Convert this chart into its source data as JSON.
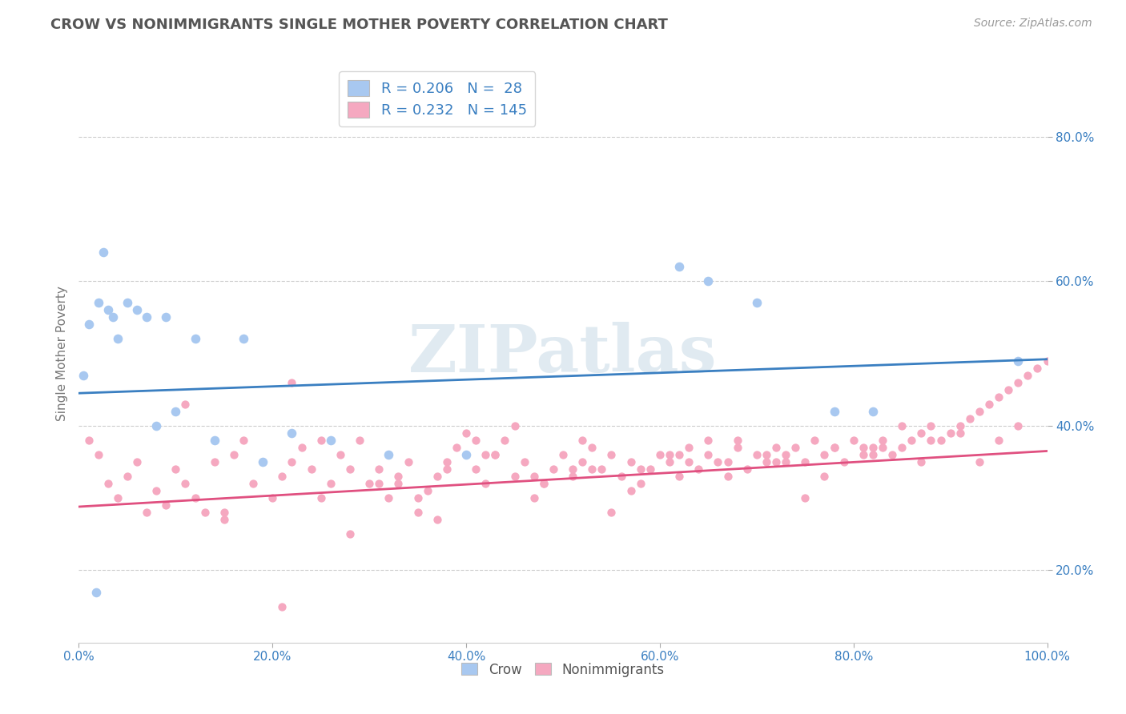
{
  "title": "CROW VS NONIMMIGRANTS SINGLE MOTHER POVERTY CORRELATION CHART",
  "source": "Source: ZipAtlas.com",
  "ylabel": "Single Mother Poverty",
  "crow_R": 0.206,
  "crow_N": 28,
  "nonimm_R": 0.232,
  "nonimm_N": 145,
  "crow_color": "#a8c8f0",
  "crow_line_color": "#3a7fc1",
  "nonimm_color": "#f5a8c0",
  "nonimm_line_color": "#e05080",
  "background_color": "#ffffff",
  "grid_color": "#cccccc",
  "title_color": "#555555",
  "axis_tick_color": "#3a7fc1",
  "legend_text_color": "#3a7fc1",
  "watermark_text": "ZIPatlas",
  "watermark_color": "#ccdde8",
  "xlim": [
    0.0,
    1.0
  ],
  "ylim": [
    0.1,
    0.9
  ],
  "xticks": [
    0.0,
    0.2,
    0.4,
    0.6,
    0.8,
    1.0
  ],
  "yticks": [
    0.2,
    0.4,
    0.6,
    0.8
  ],
  "xticklabels": [
    "0.0%",
    "20.0%",
    "40.0%",
    "60.0%",
    "80.0%",
    "100.0%"
  ],
  "yticklabels": [
    "20.0%",
    "40.0%",
    "60.0%",
    "80.0%"
  ],
  "crow_x": [
    0.005,
    0.01,
    0.018,
    0.02,
    0.025,
    0.03,
    0.035,
    0.04,
    0.05,
    0.06,
    0.07,
    0.08,
    0.09,
    0.1,
    0.12,
    0.14,
    0.17,
    0.19,
    0.22,
    0.26,
    0.32,
    0.4,
    0.62,
    0.65,
    0.7,
    0.78,
    0.82,
    0.97
  ],
  "crow_y": [
    0.47,
    0.54,
    0.17,
    0.57,
    0.64,
    0.56,
    0.55,
    0.52,
    0.57,
    0.56,
    0.55,
    0.4,
    0.55,
    0.42,
    0.52,
    0.38,
    0.52,
    0.35,
    0.39,
    0.38,
    0.36,
    0.36,
    0.62,
    0.6,
    0.57,
    0.42,
    0.42,
    0.49
  ],
  "nonimm_x": [
    0.01,
    0.02,
    0.03,
    0.04,
    0.05,
    0.06,
    0.07,
    0.08,
    0.09,
    0.1,
    0.11,
    0.12,
    0.13,
    0.14,
    0.15,
    0.16,
    0.17,
    0.18,
    0.19,
    0.2,
    0.21,
    0.22,
    0.23,
    0.24,
    0.25,
    0.26,
    0.27,
    0.28,
    0.29,
    0.3,
    0.31,
    0.32,
    0.33,
    0.34,
    0.35,
    0.36,
    0.37,
    0.38,
    0.39,
    0.4,
    0.41,
    0.42,
    0.43,
    0.44,
    0.45,
    0.46,
    0.47,
    0.48,
    0.49,
    0.5,
    0.51,
    0.52,
    0.53,
    0.54,
    0.55,
    0.56,
    0.57,
    0.58,
    0.59,
    0.6,
    0.61,
    0.62,
    0.63,
    0.64,
    0.65,
    0.66,
    0.67,
    0.68,
    0.69,
    0.7,
    0.71,
    0.72,
    0.73,
    0.74,
    0.75,
    0.76,
    0.77,
    0.78,
    0.79,
    0.8,
    0.81,
    0.82,
    0.83,
    0.84,
    0.85,
    0.86,
    0.87,
    0.88,
    0.89,
    0.9,
    0.91,
    0.92,
    0.93,
    0.94,
    0.95,
    0.96,
    0.97,
    0.98,
    0.99,
    1.0,
    0.15,
    0.25,
    0.35,
    0.45,
    0.55,
    0.65,
    0.75,
    0.85,
    0.95,
    0.38,
    0.42,
    0.48,
    0.52,
    0.58,
    0.62,
    0.68,
    0.72,
    0.78,
    0.82,
    0.88,
    0.22,
    0.28,
    0.33,
    0.43,
    0.53,
    0.63,
    0.73,
    0.83,
    0.93,
    0.37,
    0.47,
    0.57,
    0.67,
    0.77,
    0.87,
    0.97,
    0.41,
    0.61,
    0.81,
    0.91,
    0.31,
    0.51,
    0.71,
    0.11,
    0.21
  ],
  "nonimm_y": [
    0.38,
    0.36,
    0.32,
    0.3,
    0.33,
    0.35,
    0.28,
    0.31,
    0.29,
    0.34,
    0.32,
    0.3,
    0.28,
    0.35,
    0.27,
    0.36,
    0.38,
    0.32,
    0.35,
    0.3,
    0.33,
    0.35,
    0.37,
    0.34,
    0.3,
    0.32,
    0.36,
    0.34,
    0.38,
    0.32,
    0.34,
    0.3,
    0.33,
    0.35,
    0.28,
    0.31,
    0.33,
    0.35,
    0.37,
    0.39,
    0.34,
    0.32,
    0.36,
    0.38,
    0.33,
    0.35,
    0.3,
    0.32,
    0.34,
    0.36,
    0.33,
    0.35,
    0.37,
    0.34,
    0.36,
    0.33,
    0.35,
    0.32,
    0.34,
    0.36,
    0.35,
    0.33,
    0.37,
    0.34,
    0.36,
    0.35,
    0.33,
    0.37,
    0.34,
    0.36,
    0.35,
    0.37,
    0.35,
    0.37,
    0.35,
    0.38,
    0.36,
    0.37,
    0.35,
    0.38,
    0.36,
    0.37,
    0.38,
    0.36,
    0.37,
    0.38,
    0.39,
    0.4,
    0.38,
    0.39,
    0.4,
    0.41,
    0.42,
    0.43,
    0.44,
    0.45,
    0.46,
    0.47,
    0.48,
    0.49,
    0.28,
    0.38,
    0.3,
    0.4,
    0.28,
    0.38,
    0.3,
    0.4,
    0.38,
    0.34,
    0.36,
    0.32,
    0.38,
    0.34,
    0.36,
    0.38,
    0.35,
    0.37,
    0.36,
    0.38,
    0.46,
    0.25,
    0.32,
    0.36,
    0.34,
    0.35,
    0.36,
    0.37,
    0.35,
    0.27,
    0.33,
    0.31,
    0.35,
    0.33,
    0.35,
    0.4,
    0.38,
    0.36,
    0.37,
    0.39,
    0.32,
    0.34,
    0.36,
    0.43,
    0.15
  ]
}
